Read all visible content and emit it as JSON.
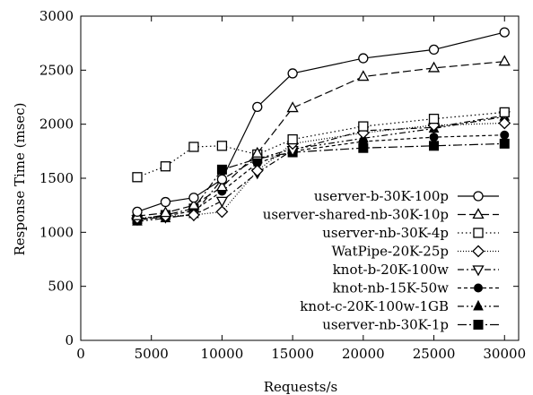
{
  "chart_data": {
    "type": "line",
    "xlabel": "Requests/s",
    "ylabel": "Response Time (msec)",
    "xlim": [
      0,
      31000
    ],
    "ylim": [
      0,
      3000
    ],
    "xticks": [
      0,
      5000,
      10000,
      15000,
      20000,
      25000,
      30000
    ],
    "yticks": [
      0,
      500,
      1000,
      1500,
      2000,
      2500,
      3000
    ],
    "xtick_labels": [
      "0",
      "5000",
      "10000",
      "15000",
      "20000",
      "25000",
      "30000"
    ],
    "ytick_labels": [
      "0",
      "500",
      "1000",
      "1500",
      "2000",
      "2500",
      "3000"
    ],
    "grid": false,
    "legend_position": "bottom-right",
    "series": [
      {
        "name": "userver-b-30K-100p",
        "marker": "circle-open",
        "dash": "solid",
        "x": [
          4000,
          6000,
          8000,
          10000,
          12500,
          15000,
          20000,
          25000,
          30000
        ],
        "y": [
          1190,
          1280,
          1320,
          1490,
          2160,
          2470,
          2610,
          2690,
          2850
        ]
      },
      {
        "name": "userver-shared-nb-30K-10p",
        "marker": "triangle-open",
        "dash": "long-dash",
        "x": [
          4000,
          6000,
          8000,
          10000,
          12500,
          15000,
          20000,
          25000,
          30000
        ],
        "y": [
          1150,
          1180,
          1250,
          1420,
          1730,
          2150,
          2440,
          2520,
          2580
        ]
      },
      {
        "name": "userver-nb-30K-4p",
        "marker": "square-open",
        "dash": "dotted",
        "x": [
          4000,
          6000,
          8000,
          10000,
          12500,
          15000,
          20000,
          25000,
          30000
        ],
        "y": [
          1510,
          1610,
          1790,
          1800,
          1720,
          1860,
          1980,
          2050,
          2110
        ]
      },
      {
        "name": "WatPipe-20K-25p",
        "marker": "diamond-open",
        "dash": "fine-dotted",
        "x": [
          4000,
          6000,
          8000,
          10000,
          12500,
          15000,
          20000,
          25000,
          30000
        ],
        "y": [
          1130,
          1150,
          1160,
          1190,
          1570,
          1820,
          1920,
          1990,
          2010
        ]
      },
      {
        "name": "knot-b-20K-100w",
        "marker": "triangle-down-open",
        "dash": "dash-dot",
        "x": [
          4000,
          6000,
          8000,
          10000,
          12500,
          15000,
          20000,
          25000,
          30000
        ],
        "y": [
          1120,
          1140,
          1160,
          1290,
          1550,
          1760,
          1940,
          1970,
          2080
        ]
      },
      {
        "name": "knot-nb-15K-50w",
        "marker": "circle-filled",
        "dash": "short-dash",
        "x": [
          4000,
          6000,
          8000,
          10000,
          12500,
          15000,
          20000,
          25000,
          30000
        ],
        "y": [
          1110,
          1150,
          1200,
          1380,
          1640,
          1750,
          1840,
          1880,
          1900
        ]
      },
      {
        "name": "knot-c-20K-100w-1GB",
        "marker": "triangle-filled",
        "dash": "dash-dot-dot",
        "x": [
          4000,
          6000,
          8000,
          10000,
          12500,
          15000,
          20000,
          25000,
          30000
        ],
        "y": [
          1100,
          1130,
          1170,
          1490,
          1680,
          1770,
          1870,
          1960,
          2070
        ]
      },
      {
        "name": "userver-nb-30K-1p",
        "marker": "square-filled",
        "dash": "dash-dot-long",
        "x": [
          4000,
          6000,
          8000,
          10000,
          12500,
          15000,
          20000,
          25000,
          30000
        ],
        "y": [
          1120,
          1160,
          1220,
          1580,
          1680,
          1740,
          1780,
          1800,
          1820
        ]
      }
    ]
  }
}
